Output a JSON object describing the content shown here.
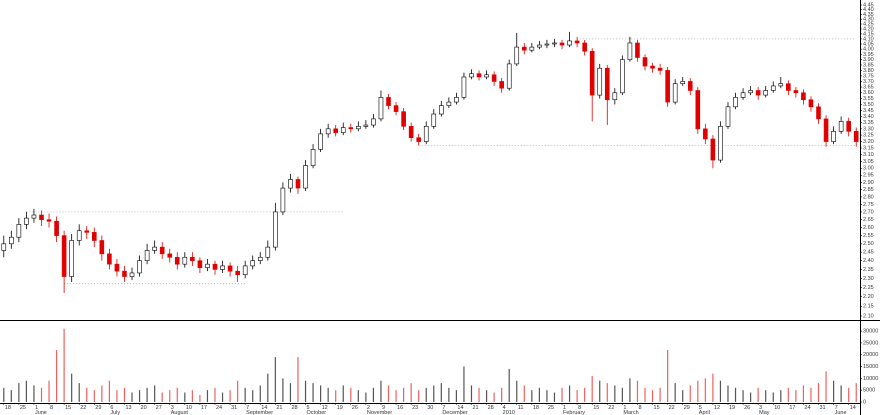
{
  "chart_data": {
    "type": "candlestick",
    "categories": [
      "18",
      null,
      "25",
      null,
      "1",
      null,
      "8",
      null,
      "15",
      null,
      "22",
      null,
      "29",
      null,
      "6",
      null,
      "13",
      null,
      "20",
      null,
      "27",
      null,
      "3",
      null,
      "10",
      null,
      "17",
      null,
      "24",
      null,
      "31",
      null,
      "7",
      null,
      "14",
      null,
      "21",
      null,
      "28",
      null,
      "5",
      null,
      "12",
      null,
      "19",
      null,
      "26",
      null,
      "2",
      null,
      "9",
      null,
      "16",
      null,
      "23",
      null,
      "30",
      null,
      "7",
      null,
      "14",
      null,
      "21",
      null,
      "28",
      null,
      "4",
      null,
      "11",
      null,
      "18",
      null,
      "25",
      null,
      "1",
      null,
      "8",
      null,
      "15",
      null,
      "22",
      null,
      "1",
      null,
      "8",
      null,
      "15",
      null,
      "22",
      null,
      "29",
      null,
      "5",
      null,
      "12",
      null,
      "19",
      null,
      "26",
      null,
      "3",
      null,
      "10",
      null,
      "17",
      null,
      "24",
      null,
      "31",
      null,
      "7",
      null,
      "14",
      null
    ],
    "months": [
      {
        "label": "June",
        "index": 4
      },
      {
        "label": "July",
        "index": 14
      },
      {
        "label": "August",
        "index": 22
      },
      {
        "label": "September",
        "index": 32
      },
      {
        "label": "October",
        "index": 40
      },
      {
        "label": "November",
        "index": 48
      },
      {
        "label": "December",
        "index": 58
      },
      {
        "label": "2010",
        "index": 66
      },
      {
        "label": "February",
        "index": 74
      },
      {
        "label": "March",
        "index": 82
      },
      {
        "label": "April",
        "index": 92
      },
      {
        "label": "May",
        "index": 100
      },
      {
        "label": "June",
        "index": 110
      }
    ],
    "ohlc": [
      [
        2.46,
        2.55,
        2.42,
        2.5
      ],
      [
        2.5,
        2.58,
        2.47,
        2.54
      ],
      [
        2.54,
        2.66,
        2.51,
        2.62
      ],
      [
        2.62,
        2.7,
        2.59,
        2.66
      ],
      [
        2.66,
        2.72,
        2.63,
        2.68
      ],
      [
        2.68,
        2.71,
        2.61,
        2.65
      ],
      [
        2.65,
        2.69,
        2.6,
        2.64
      ],
      [
        2.64,
        2.67,
        2.51,
        2.55
      ],
      [
        2.55,
        2.58,
        2.22,
        2.31
      ],
      [
        2.31,
        2.56,
        2.28,
        2.52
      ],
      [
        2.52,
        2.62,
        2.49,
        2.58
      ],
      [
        2.58,
        2.61,
        2.53,
        2.57
      ],
      [
        2.57,
        2.6,
        2.48,
        2.52
      ],
      [
        2.52,
        2.55,
        2.4,
        2.44
      ],
      [
        2.44,
        2.47,
        2.35,
        2.38
      ],
      [
        2.38,
        2.41,
        2.31,
        2.34
      ],
      [
        2.34,
        2.37,
        2.28,
        2.31
      ],
      [
        2.31,
        2.36,
        2.29,
        2.33
      ],
      [
        2.33,
        2.43,
        2.31,
        2.4
      ],
      [
        2.4,
        2.5,
        2.38,
        2.46
      ],
      [
        2.46,
        2.52,
        2.44,
        2.48
      ],
      [
        2.48,
        2.51,
        2.41,
        2.44
      ],
      [
        2.44,
        2.47,
        2.39,
        2.42
      ],
      [
        2.42,
        2.45,
        2.35,
        2.38
      ],
      [
        2.38,
        2.45,
        2.36,
        2.42
      ],
      [
        2.42,
        2.45,
        2.37,
        2.4
      ],
      [
        2.4,
        2.42,
        2.33,
        2.36
      ],
      [
        2.36,
        2.41,
        2.34,
        2.38
      ],
      [
        2.38,
        2.4,
        2.32,
        2.35
      ],
      [
        2.35,
        2.4,
        2.33,
        2.37
      ],
      [
        2.37,
        2.39,
        2.31,
        2.34
      ],
      [
        2.34,
        2.37,
        2.28,
        2.32
      ],
      [
        2.32,
        2.4,
        2.3,
        2.37
      ],
      [
        2.37,
        2.43,
        2.35,
        2.4
      ],
      [
        2.4,
        2.45,
        2.38,
        2.42
      ],
      [
        2.42,
        2.52,
        2.4,
        2.48
      ],
      [
        2.48,
        2.76,
        2.46,
        2.7
      ],
      [
        2.7,
        2.9,
        2.68,
        2.86
      ],
      [
        2.86,
        2.96,
        2.83,
        2.92
      ],
      [
        2.92,
        2.94,
        2.82,
        2.86
      ],
      [
        2.86,
        3.06,
        2.84,
        3.02
      ],
      [
        3.02,
        3.18,
        3.0,
        3.14
      ],
      [
        3.14,
        3.3,
        3.12,
        3.26
      ],
      [
        3.26,
        3.34,
        3.23,
        3.3
      ],
      [
        3.3,
        3.33,
        3.24,
        3.27
      ],
      [
        3.27,
        3.35,
        3.25,
        3.31
      ],
      [
        3.31,
        3.34,
        3.27,
        3.3
      ],
      [
        3.3,
        3.36,
        3.28,
        3.32
      ],
      [
        3.32,
        3.37,
        3.3,
        3.33
      ],
      [
        3.33,
        3.42,
        3.31,
        3.38
      ],
      [
        3.38,
        3.62,
        3.36,
        3.56
      ],
      [
        3.56,
        3.59,
        3.46,
        3.49
      ],
      [
        3.49,
        3.52,
        3.41,
        3.44
      ],
      [
        3.44,
        3.47,
        3.29,
        3.32
      ],
      [
        3.32,
        3.35,
        3.2,
        3.23
      ],
      [
        3.23,
        3.26,
        3.17,
        3.2
      ],
      [
        3.2,
        3.36,
        3.18,
        3.32
      ],
      [
        3.32,
        3.46,
        3.3,
        3.42
      ],
      [
        3.42,
        3.53,
        3.4,
        3.49
      ],
      [
        3.49,
        3.56,
        3.47,
        3.52
      ],
      [
        3.52,
        3.6,
        3.5,
        3.56
      ],
      [
        3.56,
        3.78,
        3.54,
        3.74
      ],
      [
        3.74,
        3.81,
        3.72,
        3.77
      ],
      [
        3.77,
        3.8,
        3.71,
        3.74
      ],
      [
        3.74,
        3.8,
        3.72,
        3.76
      ],
      [
        3.76,
        3.79,
        3.66,
        3.7
      ],
      [
        3.7,
        3.73,
        3.6,
        3.64
      ],
      [
        3.64,
        3.9,
        3.62,
        3.86
      ],
      [
        3.86,
        4.16,
        3.84,
        4.02
      ],
      [
        4.02,
        4.06,
        3.95,
        3.99
      ],
      [
        3.99,
        4.06,
        3.97,
        4.02
      ],
      [
        4.02,
        4.08,
        4.0,
        4.04
      ],
      [
        4.04,
        4.09,
        4.01,
        4.05
      ],
      [
        4.05,
        4.1,
        4.02,
        4.06
      ],
      [
        4.06,
        4.09,
        4.0,
        4.04
      ],
      [
        4.04,
        4.17,
        4.02,
        4.08
      ],
      [
        4.08,
        4.12,
        4.02,
        4.06
      ],
      [
        4.06,
        4.09,
        3.94,
        3.98
      ],
      [
        3.98,
        4.01,
        3.36,
        3.58
      ],
      [
        3.58,
        3.86,
        3.55,
        3.82
      ],
      [
        3.82,
        3.85,
        3.33,
        3.54
      ],
      [
        3.54,
        3.64,
        3.5,
        3.6
      ],
      [
        3.6,
        3.94,
        3.58,
        3.9
      ],
      [
        3.9,
        4.12,
        3.88,
        4.06
      ],
      [
        4.06,
        4.09,
        3.88,
        3.92
      ],
      [
        3.92,
        3.95,
        3.8,
        3.84
      ],
      [
        3.84,
        3.87,
        3.78,
        3.82
      ],
      [
        3.82,
        3.86,
        3.76,
        3.8
      ],
      [
        3.8,
        3.83,
        3.48,
        3.52
      ],
      [
        3.52,
        3.72,
        3.5,
        3.68
      ],
      [
        3.68,
        3.74,
        3.66,
        3.7
      ],
      [
        3.7,
        3.73,
        3.58,
        3.62
      ],
      [
        3.62,
        3.65,
        3.26,
        3.3
      ],
      [
        3.3,
        3.34,
        3.18,
        3.22
      ],
      [
        3.22,
        3.25,
        3.0,
        3.06
      ],
      [
        3.06,
        3.36,
        3.04,
        3.32
      ],
      [
        3.32,
        3.52,
        3.3,
        3.48
      ],
      [
        3.48,
        3.6,
        3.46,
        3.56
      ],
      [
        3.56,
        3.64,
        3.54,
        3.6
      ],
      [
        3.6,
        3.66,
        3.58,
        3.62
      ],
      [
        3.62,
        3.65,
        3.54,
        3.58
      ],
      [
        3.58,
        3.66,
        3.56,
        3.62
      ],
      [
        3.62,
        3.7,
        3.6,
        3.66
      ],
      [
        3.66,
        3.74,
        3.64,
        3.68
      ],
      [
        3.68,
        3.71,
        3.58,
        3.62
      ],
      [
        3.62,
        3.65,
        3.56,
        3.6
      ],
      [
        3.6,
        3.63,
        3.5,
        3.54
      ],
      [
        3.54,
        3.57,
        3.44,
        3.48
      ],
      [
        3.48,
        3.51,
        3.34,
        3.38
      ],
      [
        3.38,
        3.41,
        3.16,
        3.2
      ],
      [
        3.2,
        3.32,
        3.18,
        3.28
      ],
      [
        3.28,
        3.4,
        3.26,
        3.36
      ],
      [
        3.36,
        3.39,
        3.24,
        3.28
      ],
      [
        3.28,
        3.31,
        3.16,
        3.2
      ]
    ],
    "volume": [
      6000,
      5000,
      8000,
      9000,
      7000,
      6000,
      9000,
      22000,
      31000,
      12000,
      8000,
      6000,
      5000,
      7000,
      9000,
      5000,
      6000,
      4000,
      5000,
      6000,
      7000,
      4000,
      5000,
      6000,
      4000,
      5000,
      3000,
      5000,
      6000,
      4000,
      5000,
      9000,
      6000,
      5000,
      7000,
      12000,
      19000,
      10000,
      8000,
      19000,
      9000,
      8000,
      7000,
      6000,
      5000,
      7000,
      6000,
      5000,
      4000,
      6000,
      9000,
      7000,
      5000,
      6000,
      8000,
      5000,
      6000,
      7000,
      8000,
      6000,
      5000,
      15000,
      7000,
      6000,
      5000,
      4000,
      6000,
      14000,
      9000,
      7000,
      5000,
      6000,
      5000,
      4000,
      6000,
      7000,
      5000,
      6000,
      11000,
      9000,
      8000,
      7000,
      6000,
      10000,
      9000,
      6000,
      5000,
      6000,
      22000,
      8000,
      5000,
      7000,
      9000,
      10000,
      12000,
      9000,
      7000,
      6000,
      5000,
      4000,
      6000,
      5000,
      4000,
      5000,
      6000,
      5000,
      7000,
      6000,
      8000,
      13000,
      9000,
      7000,
      6000,
      8000
    ],
    "up_color": "#ffffff",
    "down_color": "#e00000",
    "volume_up_color": "#555555",
    "volume_down_color": "#f06060",
    "log_scale": true,
    "ylim": [
      2.1,
      4.45
    ],
    "yticks": [
      {
        "value": 2.1,
        "label": "2.10"
      },
      2.15,
      {
        "value": 2.2,
        "label": "2.20"
      },
      2.25,
      {
        "value": 2.3,
        "label": "2.30"
      },
      2.35,
      {
        "value": 2.4,
        "label": "2.40"
      },
      2.45,
      {
        "value": 2.5,
        "label": "2.50"
      },
      2.55,
      {
        "value": 2.6,
        "label": "2.60"
      },
      2.65,
      {
        "value": 2.7,
        "label": "2.70"
      },
      2.75,
      {
        "value": 2.8,
        "label": "2.80"
      },
      2.85,
      {
        "value": 2.9,
        "label": "2.90"
      },
      2.95,
      {
        "value": 3,
        "label": "3.00"
      },
      3.05,
      {
        "value": 3.1,
        "label": "3.10"
      },
      3.15,
      {
        "value": 3.2,
        "label": "3.20"
      },
      3.25,
      {
        "value": 3.3,
        "label": "3.30"
      },
      3.35,
      {
        "value": 3.4,
        "label": "3.40"
      },
      3.45,
      {
        "value": 3.5,
        "label": "3.50"
      },
      3.55,
      {
        "value": 3.6,
        "label": "3.60"
      },
      3.65,
      {
        "value": 3.7,
        "label": "3.70"
      },
      3.75,
      {
        "value": 3.8,
        "label": "3.80"
      },
      3.85,
      {
        "value": 3.9,
        "label": "3.90"
      },
      3.95,
      {
        "value": 4,
        "label": "4.00"
      },
      4.05,
      {
        "value": 4.1,
        "label": "4.10"
      },
      4.15,
      {
        "value": 4.2,
        "label": "4.20"
      },
      4.25,
      {
        "value": 4.3,
        "label": "4.30"
      },
      4.35,
      {
        "value": 4.4,
        "label": "4.40"
      },
      4.45
    ],
    "volume_ylim": [
      0,
      33000
    ],
    "volume_yticks": [
      0,
      5000,
      10000,
      15000,
      20000,
      25000,
      30000
    ],
    "reference_lines": [
      {
        "value": 4.1,
        "from": 76,
        "to": 113
      },
      {
        "value": 3.17,
        "from": 55,
        "to": 113
      },
      {
        "value": 2.7,
        "from": 3,
        "to": 45
      },
      {
        "value": 2.27,
        "from": 8,
        "to": 32
      }
    ]
  }
}
